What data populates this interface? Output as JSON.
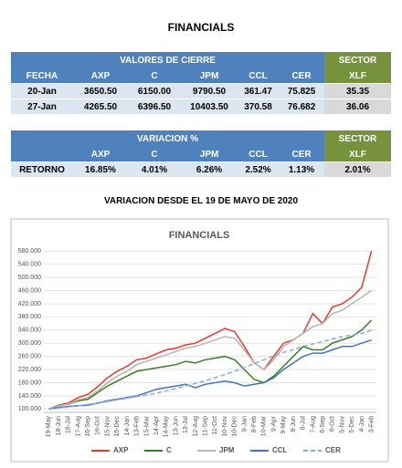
{
  "header": {
    "title": "FINANCIALS"
  },
  "table1": {
    "group": "VALORES DE CIERRE",
    "sector": "SECTOR",
    "columns": [
      "FECHA",
      "AXP",
      "C",
      "JPM",
      "CCL",
      "CER",
      "XLF"
    ],
    "rows": [
      [
        "20-Jan",
        "3650.50",
        "6150.00",
        "9790.50",
        "361.47",
        "75.825",
        "35.35"
      ],
      [
        "27-Jan",
        "4265.50",
        "6396.50",
        "10403.50",
        "370.58",
        "76.682",
        "36.06"
      ]
    ]
  },
  "table2": {
    "group": "VARIACION %",
    "sector": "SECTOR",
    "columns": [
      "AXP",
      "C",
      "JPM",
      "CCL",
      "CER",
      "XLF"
    ],
    "rows": [
      [
        "RETORNO",
        "16.85%",
        "4.01%",
        "6.26%",
        "2.52%",
        "1.13%",
        "2.01%"
      ]
    ]
  },
  "subtitle": "VARIACION DESDE EL 19 DE MAYO DE 2020",
  "chart_data": {
    "type": "line",
    "title": "FINANCIALS",
    "categories": [
      "19-May",
      "18-Jun",
      "18-Jul",
      "17-Aug",
      "16-Sep",
      "16-Oct",
      "15-Nov",
      "15-Dec",
      "14-Jan",
      "13-Feb",
      "15-Mar",
      "14-Apr",
      "14-May",
      "13-Jun",
      "13-Jul",
      "12-Aug",
      "11-Sep",
      "11-Oct",
      "10-Nov",
      "10-Dec",
      "9-Jan",
      "8-Feb",
      "10-Mar",
      "9-Apr",
      "9-May",
      "8-Jun",
      "8-Jul",
      "7-Aug",
      "6-Sep",
      "6-Oct",
      "5-Nov",
      "5-Dec",
      "4-Jan",
      "3-Feb"
    ],
    "series": [
      {
        "name": "AXP",
        "color": "#e8392b",
        "values": [
          100,
          112,
          118,
          135,
          145,
          168,
          195,
          215,
          230,
          250,
          255,
          268,
          280,
          285,
          295,
          300,
          315,
          330,
          345,
          335,
          290,
          240,
          220,
          260,
          300,
          310,
          330,
          390,
          360,
          410,
          420,
          440,
          470,
          580
        ]
      },
      {
        "name": "C",
        "color": "#3a7d22",
        "values": [
          100,
          110,
          115,
          125,
          130,
          150,
          170,
          185,
          200,
          215,
          220,
          225,
          230,
          235,
          245,
          240,
          250,
          255,
          260,
          250,
          220,
          190,
          180,
          200,
          230,
          260,
          290,
          280,
          280,
          300,
          310,
          320,
          340,
          370
        ]
      },
      {
        "name": "JPM",
        "color": "#b5b5b5",
        "values": [
          100,
          110,
          115,
          128,
          135,
          155,
          180,
          200,
          215,
          235,
          245,
          255,
          265,
          275,
          285,
          290,
          300,
          310,
          320,
          315,
          280,
          240,
          220,
          250,
          290,
          310,
          330,
          350,
          360,
          390,
          400,
          420,
          440,
          460
        ]
      },
      {
        "name": "CCL",
        "color": "#4472c4",
        "values": [
          100,
          105,
          108,
          110,
          112,
          118,
          125,
          130,
          135,
          140,
          150,
          160,
          165,
          170,
          175,
          165,
          175,
          180,
          185,
          180,
          170,
          175,
          180,
          195,
          220,
          240,
          260,
          270,
          270,
          280,
          290,
          290,
          300,
          310
        ]
      },
      {
        "name": "CER",
        "color": "#8eaadb",
        "dashed": true,
        "values": [
          100,
          103,
          106,
          110,
          114,
          118,
          123,
          128,
          133,
          138,
          143,
          148,
          155,
          162,
          170,
          178,
          186,
          195,
          205,
          215,
          226,
          238,
          250,
          262,
          272,
          280,
          290,
          298,
          305,
          313,
          320,
          325,
          330,
          340
        ]
      }
    ],
    "ylim": [
      90,
      600
    ],
    "yticks": [
      {
        "value": 100,
        "label": "100.000"
      },
      {
        "value": 140,
        "label": "140.000"
      },
      {
        "value": 180,
        "label": "180.000"
      },
      {
        "value": 220,
        "label": "220.000"
      },
      {
        "value": 260,
        "label": "260.000"
      },
      {
        "value": 300,
        "label": "300.000"
      },
      {
        "value": 340,
        "label": "340.000"
      },
      {
        "value": 380,
        "label": "380.000"
      },
      {
        "value": 420,
        "label": "420.000"
      },
      {
        "value": 460,
        "label": "460.000"
      },
      {
        "value": 500,
        "label": "500.000"
      },
      {
        "value": 540,
        "label": "540.000"
      },
      {
        "value": 580,
        "label": "580.000"
      }
    ],
    "grid": true
  }
}
